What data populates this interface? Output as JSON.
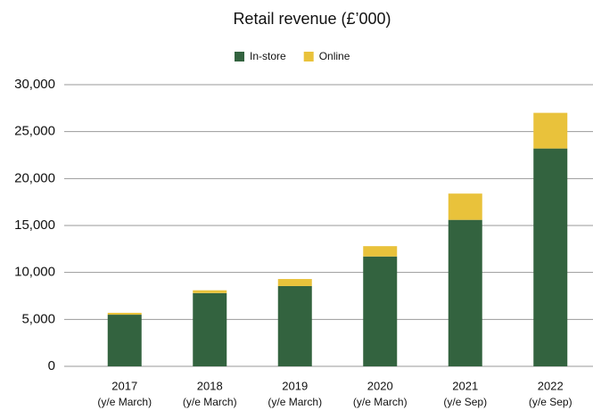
{
  "chart_data": {
    "type": "stacked_bar",
    "title": "Retail revenue (£’000)",
    "categories": [
      [
        "2017",
        "(y/e March)"
      ],
      [
        "2018",
        "(y/e March)"
      ],
      [
        "2019",
        "(y/e March)"
      ],
      [
        "2020",
        "(y/e March)"
      ],
      [
        "2021",
        "(y/e Sep)"
      ],
      [
        "2022",
        "(y/e Sep)"
      ]
    ],
    "series": [
      {
        "name": "In-store",
        "color": "#33633f",
        "values": [
          5500,
          7800,
          8550,
          11700,
          15600,
          23200
        ]
      },
      {
        "name": "Online",
        "color": "#e9c23b",
        "values": [
          200,
          300,
          750,
          1100,
          2800,
          3800
        ]
      }
    ],
    "ylim": [
      0,
      30000
    ],
    "yticks": [
      0,
      {
        "value": 5000,
        "label": "5,000"
      },
      {
        "value": 10000,
        "label": "10,000"
      },
      {
        "value": 15000,
        "label": "15,000"
      },
      {
        "value": 20000,
        "label": "20,000"
      },
      {
        "value": 25000,
        "label": "25,000"
      },
      {
        "value": 30000,
        "label": "30,000"
      }
    ],
    "grid": true,
    "legend": "top"
  }
}
